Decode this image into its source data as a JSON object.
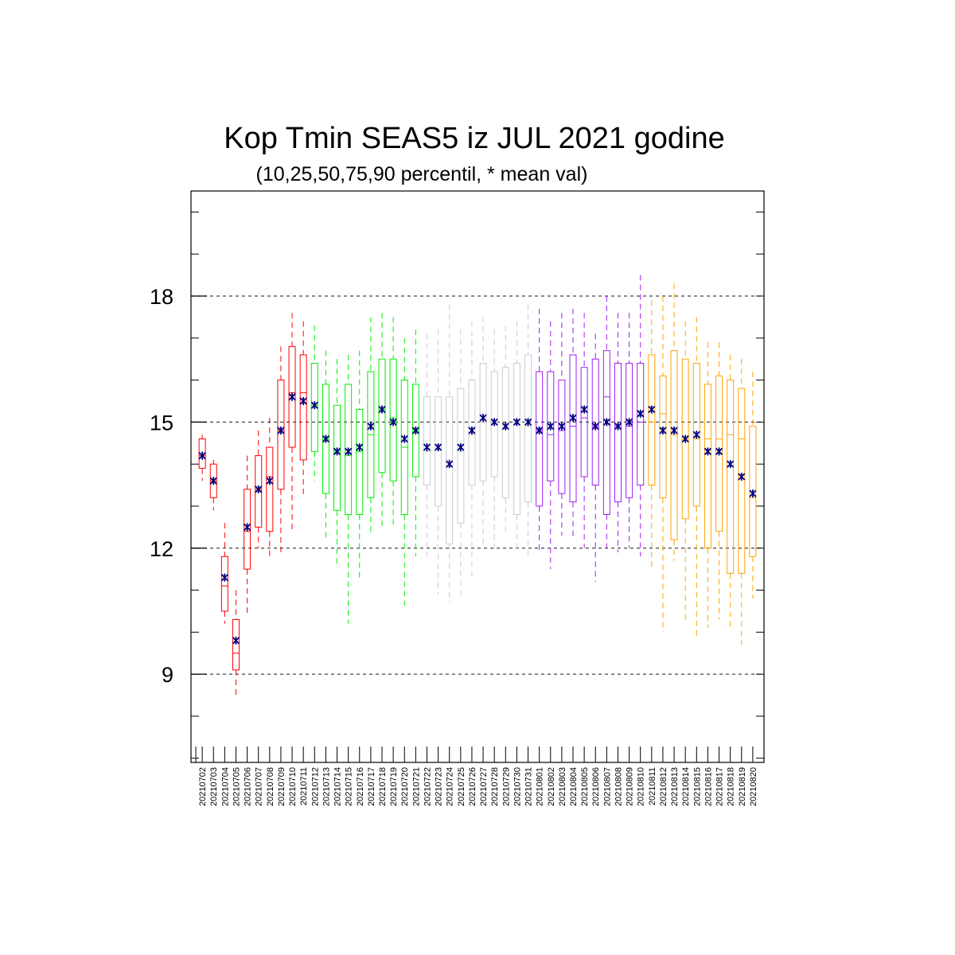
{
  "chart_data": {
    "type": "boxplot",
    "title": "Kop Tmin SEAS5 iz JUL 2021 godine",
    "subtitle": "(10,25,50,75,90 percentil, * mean val)",
    "ylim": [
      6.9,
      20.5
    ],
    "yticks": [
      9,
      12,
      15,
      18
    ],
    "yticks_labels": [
      "9",
      "12",
      "15",
      "18"
    ],
    "y_minor_step": 1,
    "grid": "horizontal dashed at major ticks",
    "month_colors": {
      "early-july": "#ff0000",
      "mid-july": "#00ee00",
      "late-july": "#cccccc",
      "early-august": "#a020f0",
      "mid-august": "#ffa500"
    },
    "mean_marker_color": "#000080",
    "categories": [
      "20210702",
      "20210703",
      "20210704",
      "20210705",
      "20210706",
      "20210707",
      "20210708",
      "20210709",
      "20210710",
      "20210711",
      "20210712",
      "20210713",
      "20210714",
      "20210715",
      "20210716",
      "20210717",
      "20210718",
      "20210719",
      "20210720",
      "20210721",
      "20210722",
      "20210723",
      "20210724",
      "20210725",
      "20210726",
      "20210727",
      "20210728",
      "20210729",
      "20210730",
      "20210731",
      "20210801",
      "20210802",
      "20210803",
      "20210804",
      "20210805",
      "20210806",
      "20210807",
      "20210808",
      "20210809",
      "20210810",
      "20210811",
      "20210812",
      "20210813",
      "20210814",
      "20210815",
      "20210816",
      "20210817",
      "20210818",
      "20210819",
      "20210820"
    ],
    "group": [
      "early-july",
      "early-july",
      "early-july",
      "early-july",
      "early-july",
      "early-july",
      "early-july",
      "early-july",
      "early-july",
      "early-july",
      "mid-july",
      "mid-july",
      "mid-july",
      "mid-july",
      "mid-july",
      "mid-july",
      "mid-july",
      "mid-july",
      "mid-july",
      "mid-july",
      "late-july",
      "late-july",
      "late-july",
      "late-july",
      "late-july",
      "late-july",
      "late-july",
      "late-july",
      "late-july",
      "late-july",
      "early-august",
      "early-august",
      "early-august",
      "early-august",
      "early-august",
      "early-august",
      "early-august",
      "early-august",
      "early-august",
      "early-august",
      "mid-august",
      "mid-august",
      "mid-august",
      "mid-august",
      "mid-august",
      "mid-august",
      "mid-august",
      "mid-august",
      "mid-august",
      "mid-august"
    ],
    "p10": [
      13.6,
      12.9,
      10.2,
      8.5,
      10.4,
      12.0,
      11.8,
      11.9,
      12.4,
      13.2,
      13.6,
      12.2,
      11.6,
      10.2,
      11.3,
      12.3,
      12.5,
      12.5,
      10.6,
      11.8,
      11.8,
      10.9,
      10.7,
      10.8,
      11.3,
      12.1,
      11.9,
      12.4,
      11.9,
      11.8,
      11.9,
      11.5,
      12.3,
      12.2,
      12.0,
      11.2,
      12.0,
      11.9,
      12.0,
      11.8,
      11.5,
      10.0,
      11.7,
      10.3,
      9.9,
      10.1,
      10.3,
      10.1,
      9.7,
      10.8
    ],
    "p25": [
      13.9,
      13.2,
      10.5,
      9.1,
      11.5,
      12.5,
      12.4,
      13.4,
      14.4,
      14.1,
      14.3,
      13.3,
      12.9,
      12.8,
      12.8,
      13.2,
      13.8,
      13.6,
      12.8,
      13.7,
      13.5,
      13.0,
      12.1,
      12.6,
      13.5,
      13.6,
      13.7,
      13.2,
      12.8,
      13.1,
      13.0,
      13.6,
      13.3,
      13.1,
      13.7,
      13.5,
      12.8,
      13.1,
      13.2,
      13.5,
      13.5,
      13.2,
      12.2,
      12.7,
      13.0,
      12.0,
      12.4,
      11.4,
      11.4,
      11.8
    ],
    "p50": [
      14.2,
      13.6,
      11.1,
      9.5,
      12.4,
      13.4,
      13.7,
      14.8,
      15.7,
      15.7,
      15.4,
      14.6,
      14.3,
      14.2,
      14.3,
      14.7,
      15.3,
      15.1,
      14.4,
      14.8,
      14.3,
      14.4,
      14.1,
      14.3,
      14.7,
      15.0,
      15.0,
      14.9,
      15.0,
      14.9,
      14.8,
      14.7,
      14.8,
      14.9,
      15.1,
      14.9,
      15.6,
      14.9,
      14.9,
      15.0,
      15.0,
      15.2,
      14.7,
      14.6,
      14.6,
      14.6,
      14.6,
      14.7,
      14.6,
      13.2
    ],
    "p75": [
      14.6,
      14.0,
      11.8,
      10.3,
      13.4,
      14.2,
      14.4,
      16.0,
      16.8,
      16.6,
      16.4,
      15.9,
      15.4,
      15.9,
      15.3,
      16.2,
      16.5,
      16.5,
      16.0,
      15.9,
      15.6,
      15.6,
      15.6,
      15.8,
      16.0,
      16.4,
      16.2,
      16.3,
      16.4,
      16.6,
      16.2,
      16.2,
      16.0,
      16.6,
      16.3,
      16.5,
      16.7,
      16.4,
      16.4,
      16.4,
      16.6,
      16.1,
      16.7,
      16.5,
      16.4,
      15.9,
      16.1,
      16.0,
      15.8,
      14.9
    ],
    "p90": [
      14.7,
      14.1,
      12.6,
      11.0,
      14.2,
      14.8,
      15.1,
      16.8,
      17.6,
      17.4,
      17.3,
      16.7,
      16.5,
      16.6,
      16.7,
      17.5,
      17.6,
      17.5,
      17.0,
      17.2,
      17.1,
      17.2,
      17.8,
      17.2,
      17.4,
      17.5,
      17.2,
      17.3,
      17.4,
      17.8,
      17.7,
      17.4,
      17.6,
      17.7,
      17.6,
      17.1,
      18.0,
      17.6,
      17.6,
      18.5,
      17.9,
      18.0,
      18.3,
      17.4,
      17.5,
      16.9,
      16.9,
      16.6,
      16.5,
      16.2
    ],
    "mean": [
      14.2,
      13.6,
      11.3,
      9.8,
      12.5,
      13.4,
      13.6,
      14.8,
      15.6,
      15.5,
      15.4,
      14.6,
      14.3,
      14.3,
      14.4,
      14.9,
      15.3,
      15.0,
      14.6,
      14.8,
      14.4,
      14.4,
      14.0,
      14.4,
      14.8,
      15.1,
      15.0,
      14.9,
      15.0,
      15.0,
      14.8,
      14.9,
      14.9,
      15.1,
      15.3,
      14.9,
      15.0,
      14.9,
      15.0,
      15.2,
      15.3,
      14.8,
      14.8,
      14.6,
      14.7,
      14.3,
      14.3,
      14.0,
      13.7,
      13.3
    ]
  }
}
